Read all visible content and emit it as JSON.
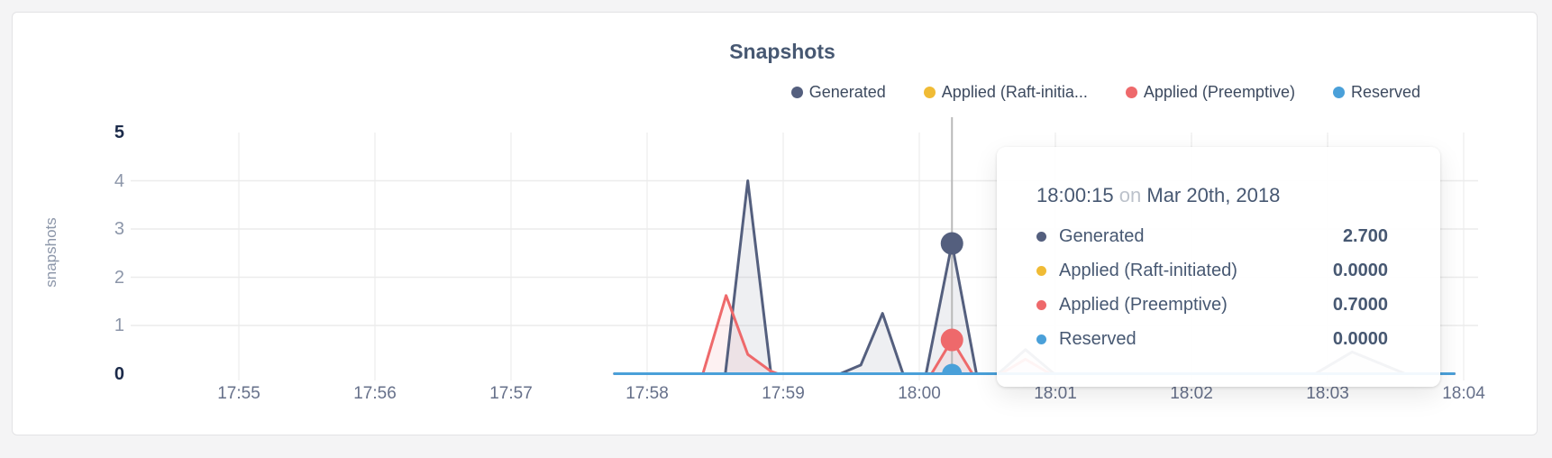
{
  "theme": {
    "page_bg": "#f4f4f5",
    "card_bg": "#ffffff",
    "card_border": "#e3e3e5",
    "title_color": "#475872",
    "grid_color": "#ececec",
    "hover_line_color": "#b9b9b9",
    "generated_color": "#545f7e",
    "raft_color": "#f0bb35",
    "preemptive_color": "#ee696b",
    "reserved_color": "#4aa0d9"
  },
  "chart": {
    "title": "Snapshots",
    "y_axis_label": "snapshots"
  },
  "legend": {
    "items": [
      {
        "id": "generated",
        "label": "Generated",
        "color": "#545f7e"
      },
      {
        "id": "applied_raft",
        "label": "Applied (Raft-initia...",
        "color": "#f0bb35"
      },
      {
        "id": "applied_preemptive",
        "label": "Applied (Preemptive)",
        "color": "#ee696b"
      },
      {
        "id": "reserved",
        "label": "Reserved",
        "color": "#4aa0d9"
      }
    ]
  },
  "tooltip": {
    "time": "18:00:15",
    "connector": "on",
    "date": "Mar 20th, 2018",
    "rows": [
      {
        "label": "Generated",
        "color": "#545f7e",
        "value": "2.700"
      },
      {
        "label": "Applied (Raft-initiated)",
        "color": "#f0bb35",
        "value": "0.0000"
      },
      {
        "label": "Applied (Preemptive)",
        "color": "#ee696b",
        "value": "0.7000"
      },
      {
        "label": "Reserved",
        "color": "#4aa0d9",
        "value": "0.0000"
      }
    ]
  },
  "chart_data": {
    "type": "area",
    "title": "Snapshots",
    "xlabel": "",
    "ylabel": "snapshots",
    "ylim": [
      0,
      5
    ],
    "grid": true,
    "legend_position": "top-right",
    "x_unit": "minutes after 17:55",
    "x_ticks": [
      "17:55",
      "17:56",
      "17:57",
      "17:58",
      "17:59",
      "18:00",
      "18:01",
      "18:02",
      "18:03",
      "18:04"
    ],
    "y_ticks": [
      {
        "value": 5,
        "emphasis": true
      },
      {
        "value": 4,
        "emphasis": false
      },
      {
        "value": 3,
        "emphasis": false
      },
      {
        "value": 2,
        "emphasis": false
      },
      {
        "value": 1,
        "emphasis": false
      },
      {
        "value": 0,
        "emphasis": true
      }
    ],
    "y_gridlines": [
      1,
      2,
      3,
      4
    ],
    "series": [
      {
        "id": "applied_raft",
        "name": "Applied (Raft-initiated)",
        "color": "#f0bb35",
        "fill": null,
        "stroke_width": 2.5,
        "points": [
          [
            2.76,
            0
          ],
          [
            8.93,
            0
          ]
        ]
      },
      {
        "id": "generated",
        "name": "Generated",
        "color": "#545f7e",
        "fill": "rgba(84,95,126,0.10)",
        "stroke_width": 3,
        "points": [
          [
            2.76,
            0
          ],
          [
            3.575,
            0
          ],
          [
            3.74,
            4.0
          ],
          [
            3.91,
            0
          ],
          [
            4.42,
            0
          ],
          [
            4.57,
            0.18
          ],
          [
            4.73,
            1.25
          ],
          [
            4.88,
            0
          ],
          [
            5.05,
            0
          ],
          [
            5.24,
            2.7
          ],
          [
            5.42,
            0
          ],
          [
            5.58,
            0
          ],
          [
            5.78,
            0.5
          ],
          [
            5.99,
            0
          ],
          [
            7.91,
            0
          ],
          [
            8.18,
            0.45
          ],
          [
            8.57,
            0
          ],
          [
            8.93,
            0
          ]
        ]
      },
      {
        "id": "applied_preemptive",
        "name": "Applied (Preemptive)",
        "color": "#ee696b",
        "fill": "rgba(238,105,107,0.09)",
        "stroke_width": 3,
        "points": [
          [
            2.76,
            0
          ],
          [
            3.41,
            0
          ],
          [
            3.58,
            1.62
          ],
          [
            3.74,
            0.4
          ],
          [
            3.91,
            0.05
          ],
          [
            3.96,
            0
          ],
          [
            5.09,
            0
          ],
          [
            5.24,
            0.7
          ],
          [
            5.39,
            0
          ],
          [
            5.6,
            0
          ],
          [
            5.78,
            0.3
          ],
          [
            5.96,
            0
          ],
          [
            8.93,
            0
          ]
        ]
      },
      {
        "id": "reserved",
        "name": "Reserved",
        "color": "#4aa0d9",
        "fill": null,
        "stroke_width": 3,
        "points": [
          [
            2.76,
            0
          ],
          [
            8.93,
            0
          ]
        ]
      }
    ],
    "hover": {
      "x": 5.24,
      "time": "18:00:15",
      "date": "Mar 20th, 2018",
      "points": [
        {
          "series": "generated",
          "value": 2.7,
          "r": 12.5
        },
        {
          "series": "applied_preemptive",
          "value": 0.7,
          "r": 12.5
        },
        {
          "series": "reserved",
          "value": 0,
          "r": 11
        }
      ]
    }
  }
}
